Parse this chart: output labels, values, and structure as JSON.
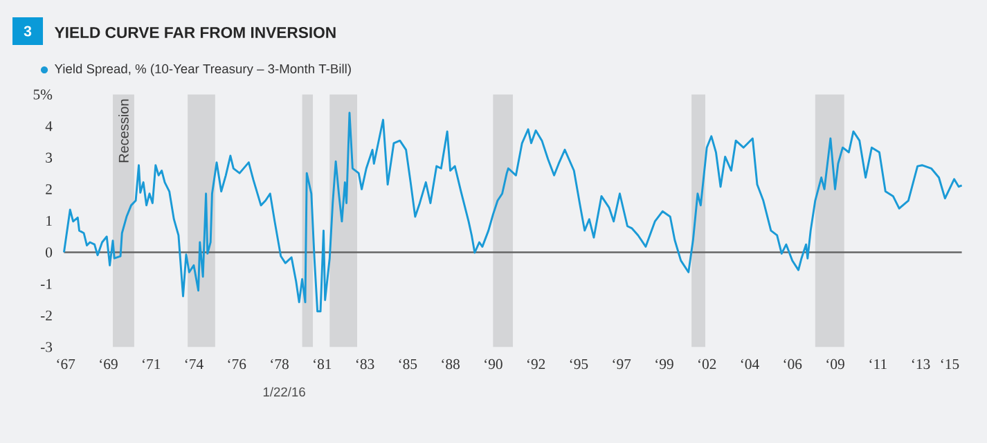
{
  "chart_data": {
    "type": "line",
    "title": "YIELD CURVE FAR FROM INVERSION",
    "annotations": [
      "3",
      "1/22/16"
    ],
    "legend": "top left",
    "xlim": [
      "1966-10",
      "2016-02"
    ],
    "ylim": [
      -3,
      5
    ],
    "xticks": [
      {
        "value": "1967-01",
        "label": "‘67"
      },
      {
        "value": "1969-05",
        "label": "‘69"
      },
      {
        "value": "1971-09",
        "label": "‘71"
      },
      {
        "value": "1974-01",
        "label": "‘74"
      },
      {
        "value": "1976-05",
        "label": "‘76"
      },
      {
        "value": "1978-09",
        "label": "‘78"
      },
      {
        "value": "1981-01",
        "label": "‘81"
      },
      {
        "value": "1983-05",
        "label": "‘83"
      },
      {
        "value": "1985-09",
        "label": "‘85"
      },
      {
        "value": "1988-01",
        "label": "‘88"
      },
      {
        "value": "1990-05",
        "label": "‘90"
      },
      {
        "value": "1992-09",
        "label": "‘92"
      },
      {
        "value": "1995-01",
        "label": "‘95"
      },
      {
        "value": "1997-05",
        "label": "‘97"
      },
      {
        "value": "1999-09",
        "label": "‘99"
      },
      {
        "value": "2002-01",
        "label": "‘02"
      },
      {
        "value": "2004-05",
        "label": "‘04"
      },
      {
        "value": "2006-09",
        "label": "‘06"
      },
      {
        "value": "2009-01",
        "label": "‘09"
      },
      {
        "value": "2011-05",
        "label": "‘11"
      },
      {
        "value": "2013-09",
        "label": "‘13"
      },
      {
        "value": "2015-04",
        "label": "‘15"
      }
    ],
    "yticks": [
      -3,
      -2,
      -1,
      0,
      1,
      2,
      3,
      4,
      {
        "value": 5,
        "label": "5%"
      }
    ],
    "ref_lines": [
      {
        "axis": "y",
        "value": 0,
        "color": "#666666"
      }
    ],
    "bands": [
      {
        "axis": "x",
        "from": "1969-08",
        "to": "1970-10",
        "label": "Recession",
        "color": "#d4d5d7"
      },
      {
        "axis": "x",
        "from": "1973-09",
        "to": "1975-03",
        "color": "#d4d5d7"
      },
      {
        "axis": "x",
        "from": "1979-12",
        "to": "1980-07",
        "color": "#d4d5d7"
      },
      {
        "axis": "x",
        "from": "1981-06",
        "to": "1982-12",
        "color": "#d4d5d7"
      },
      {
        "axis": "x",
        "from": "1990-05",
        "to": "1991-06",
        "color": "#d4d5d7"
      },
      {
        "axis": "x",
        "from": "2001-03",
        "to": "2001-12",
        "color": "#d4d5d7"
      },
      {
        "axis": "x",
        "from": "2007-12",
        "to": "2009-07",
        "color": "#d4d5d7"
      }
    ],
    "series": [
      {
        "name": "Yield Spread, % (10-Year Treasury – 3-Month T-Bill)",
        "color": "#1a9ad6",
        "x": [
          "1966-12",
          "1967-04",
          "1967-06",
          "1967-09",
          "1967-10",
          "1968-01",
          "1968-03",
          "1968-05",
          "1968-08",
          "1968-10",
          "1969-01",
          "1969-04",
          "1969-06",
          "1969-08",
          "1969-09",
          "1970-01",
          "1970-02",
          "1970-05",
          "1970-08",
          "1970-11",
          "1971-01",
          "1971-02",
          "1971-04",
          "1971-06",
          "1971-08",
          "1971-10",
          "1971-12",
          "1972-02",
          "1972-04",
          "1972-06",
          "1972-09",
          "1972-12",
          "1973-03",
          "1973-06",
          "1973-08",
          "1973-10",
          "1974-01",
          "1974-04",
          "1974-05",
          "1974-07",
          "1974-09",
          "1974-10",
          "1974-12",
          "1975-01",
          "1975-04",
          "1975-07",
          "1975-10",
          "1976-01",
          "1976-03",
          "1976-07",
          "1977-01",
          "1977-04",
          "1977-09",
          "1977-12",
          "1978-03",
          "1978-06",
          "1978-10",
          "1979-01",
          "1979-05",
          "1979-08",
          "1979-10",
          "1979-12",
          "1980-02",
          "1980-03",
          "1980-06",
          "1980-08",
          "1980-10",
          "1980-12",
          "1981-02",
          "1981-03",
          "1981-06",
          "1981-08",
          "1981-10",
          "1981-12",
          "1982-02",
          "1982-04",
          "1982-05",
          "1982-07",
          "1982-09",
          "1983-01",
          "1983-03",
          "1983-06",
          "1983-10",
          "1983-11",
          "1984-05",
          "1984-08",
          "1984-12",
          "1985-04",
          "1985-08",
          "1985-11",
          "1986-02",
          "1986-05",
          "1986-09",
          "1986-12",
          "1987-04",
          "1987-07",
          "1987-11",
          "1988-01",
          "1988-04",
          "1988-08",
          "1989-01",
          "1989-03",
          "1989-05",
          "1989-08",
          "1989-10",
          "1990-02",
          "1990-05",
          "1990-08",
          "1990-11",
          "1991-02",
          "1991-03",
          "1991-08",
          "1991-12",
          "1992-04",
          "1992-06",
          "1992-09",
          "1993-01",
          "1993-05",
          "1993-09",
          "1993-12",
          "1994-04",
          "1994-10",
          "1995-02",
          "1995-05",
          "1995-08",
          "1995-11",
          "1996-04",
          "1996-09",
          "1996-12",
          "1997-04",
          "1997-09",
          "1997-12",
          "1998-04",
          "1998-09",
          "1999-03",
          "1999-08",
          "2000-01",
          "2000-04",
          "2000-08",
          "2001-01",
          "2001-04",
          "2001-07",
          "2001-09",
          "2002-01",
          "2002-04",
          "2002-07",
          "2002-10",
          "2003-01",
          "2003-05",
          "2003-08",
          "2004-01",
          "2004-07",
          "2004-10",
          "2005-02",
          "2005-07",
          "2005-11",
          "2006-02",
          "2006-05",
          "2006-09",
          "2007-01",
          "2007-03",
          "2007-06",
          "2007-07",
          "2007-09",
          "2007-12",
          "2008-04",
          "2008-06",
          "2008-10",
          "2009-01",
          "2009-03",
          "2009-06",
          "2009-10",
          "2010-01",
          "2010-05",
          "2010-09",
          "2011-01",
          "2011-06",
          "2011-10",
          "2012-03",
          "2012-07",
          "2013-01",
          "2013-07",
          "2013-10",
          "2014-04",
          "2014-09",
          "2015-01",
          "2015-07",
          "2015-10",
          "2015-12"
        ],
        "values": [
          0,
          1.35,
          0.98,
          1.1,
          0.69,
          0.61,
          0.22,
          0.32,
          0.25,
          -0.09,
          0.32,
          0.5,
          -0.41,
          0.37,
          -0.19,
          -0.12,
          0.61,
          1.13,
          1.49,
          1.64,
          2.76,
          1.89,
          2.22,
          1.49,
          1.86,
          1.56,
          2.76,
          2.44,
          2.59,
          2.22,
          1.93,
          1.05,
          0.54,
          -1.39,
          -0.07,
          -0.63,
          -0.41,
          -1.21,
          0.32,
          -0.77,
          1.86,
          -0.04,
          0.32,
          1.86,
          2.85,
          1.93,
          2.44,
          3.06,
          2.66,
          2.51,
          2.85,
          2.3,
          1.49,
          1.64,
          1.86,
          0.98,
          -0.12,
          -0.34,
          -0.16,
          -0.92,
          -1.58,
          -0.85,
          -1.58,
          2.51,
          1.86,
          -0.19,
          -1.87,
          -1.87,
          0.69,
          -1.51,
          -0.19,
          1.56,
          2.88,
          1.86,
          0.98,
          2.22,
          1.56,
          4.42,
          2.66,
          2.51,
          2.0,
          2.66,
          3.25,
          2.81,
          4.2,
          2.15,
          3.46,
          3.54,
          3.25,
          2.22,
          1.13,
          1.56,
          2.22,
          1.56,
          2.73,
          2.66,
          3.83,
          2.59,
          2.73,
          1.93,
          0.98,
          0.54,
          -0.01,
          0.32,
          0.18,
          0.69,
          1.2,
          1.64,
          1.86,
          2.51,
          2.66,
          2.44,
          3.46,
          3.9,
          3.46,
          3.86,
          3.54,
          2.95,
          2.44,
          2.81,
          3.25,
          2.59,
          1.49,
          0.69,
          1.05,
          0.47,
          1.78,
          1.42,
          0.98,
          1.86,
          0.83,
          0.76,
          0.54,
          0.18,
          0.98,
          1.3,
          1.13,
          0.39,
          -0.26,
          -0.63,
          0.39,
          1.86,
          1.49,
          3.32,
          3.68,
          3.17,
          2.08,
          3.03,
          2.59,
          3.54,
          3.32,
          3.61,
          2.15,
          1.64,
          0.69,
          0.54,
          -0.04,
          0.25,
          -0.26,
          -0.56,
          -0.19,
          0.25,
          -0.19,
          0.69,
          1.64,
          2.37,
          2.0,
          3.61,
          2.0,
          2.81,
          3.32,
          3.17,
          3.83,
          3.54,
          2.37,
          3.32,
          3.17,
          1.93,
          1.78,
          1.39,
          1.64,
          2.73,
          2.76,
          2.66,
          2.37,
          1.71,
          2.32,
          2.08,
          2.12
        ]
      }
    ]
  }
}
